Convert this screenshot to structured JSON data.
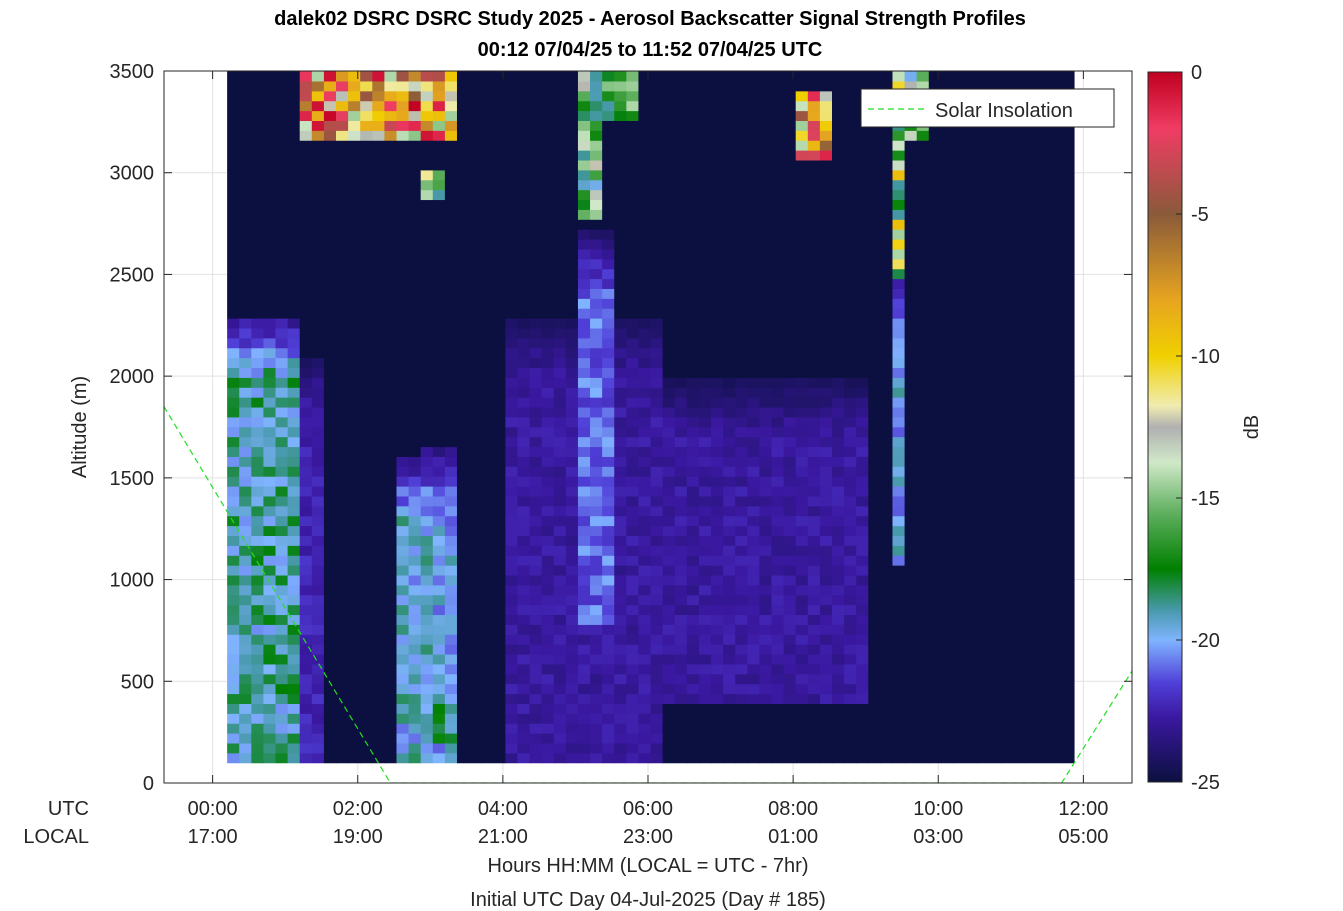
{
  "header": {
    "title_line1": "dalek02 DSRC DSRC Study 2025 - Aerosol Backscatter Signal Strength Profiles",
    "title_line2": "00:12 07/04/25 to 11:52 07/04/25  UTC"
  },
  "axes": {
    "ylabel": "Altitude (m)",
    "row_label_utc": "UTC",
    "row_label_local": "LOCAL",
    "xlabel_line1": "Hours HH:MM  (LOCAL = UTC - 7hr)",
    "xlabel_line2": "Initial UTC Day 04-Jul-2025 (Day # 185)"
  },
  "legend": {
    "label": "Solar Insolation",
    "placement": "top-right"
  },
  "colorbar": {
    "label": "dB",
    "ticks": [
      "0",
      "-5",
      "-10",
      "-15",
      "-20",
      "-25"
    ]
  },
  "colors": {
    "line": "#22dd22",
    "background": "#0c1040"
  },
  "chart_data": {
    "type": "heatmap",
    "title": "dalek02 DSRC DSRC Study 2025 - Aerosol Backscatter Signal Strength Profiles",
    "subtitle": "00:12 07/04/25 to 11:52 07/04/25  UTC",
    "xlim_hours_utc": [
      -0.67,
      12.67
    ],
    "ylim": [
      0,
      3500
    ],
    "clim": [
      -25,
      0
    ],
    "grid": true,
    "x_ticks_utc": [
      "00:00",
      "02:00",
      "04:00",
      "06:00",
      "08:00",
      "10:00",
      "12:00"
    ],
    "x_ticks_local": [
      "17:00",
      "19:00",
      "21:00",
      "23:00",
      "01:00",
      "03:00",
      "05:00"
    ],
    "y_ticks": [
      "0",
      "500",
      "1000",
      "1500",
      "2000",
      "2500",
      "3000",
      "3500"
    ],
    "profile_time_range_hours_utc": [
      0.2,
      11.87
    ],
    "altitude_range_m": [
      100,
      3500
    ],
    "features": [
      {
        "time_start": 0.2,
        "time_end": 1.2,
        "alt_start": 100,
        "alt_end": 2300,
        "db_peak": -19
      },
      {
        "time_start": 1.2,
        "time_end": 1.5,
        "alt_start": 100,
        "alt_end": 2100,
        "db_peak": -22.5
      },
      {
        "time_start": 2.6,
        "time_end": 3.0,
        "alt_start": 100,
        "alt_end": 1600,
        "db_peak": -19.5
      },
      {
        "time_start": 2.9,
        "time_end": 3.4,
        "alt_start": 100,
        "alt_end": 1650,
        "db_peak": -20
      },
      {
        "time_start": 4.0,
        "time_end": 6.2,
        "alt_start": 100,
        "alt_end": 2300,
        "db_peak": -23
      },
      {
        "time_start": 5.1,
        "time_end": 5.5,
        "alt_start": 800,
        "alt_end": 2700,
        "db_peak": -21
      },
      {
        "time_start": 6.2,
        "time_end": 9.0,
        "alt_start": 400,
        "alt_end": 2000,
        "db_peak": -23
      },
      {
        "time_start": 9.3,
        "time_end": 9.6,
        "alt_start": 1050,
        "alt_end": 2500,
        "db_peak": -20
      }
    ],
    "high_signal_cells": [
      {
        "time_start": 1.25,
        "time_end": 3.4,
        "alt_start": 3150,
        "alt_end": 3500,
        "db_range": [
          -15,
          0
        ]
      },
      {
        "time_start": 2.9,
        "time_end": 3.2,
        "alt_start": 2850,
        "alt_end": 3000,
        "db_range": [
          -20,
          -10
        ]
      },
      {
        "time_start": 5.1,
        "time_end": 5.4,
        "alt_start": 2750,
        "alt_end": 3500,
        "db_range": [
          -20,
          -12
        ]
      },
      {
        "time_start": 5.4,
        "time_end": 5.8,
        "alt_start": 3250,
        "alt_end": 3500,
        "db_range": [
          -19,
          -14
        ]
      },
      {
        "time_start": 8.0,
        "time_end": 8.6,
        "alt_start": 3050,
        "alt_end": 3400,
        "db_range": [
          -15,
          -1
        ]
      },
      {
        "time_start": 9.3,
        "time_end": 9.6,
        "alt_start": 2500,
        "alt_end": 3500,
        "db_range": [
          -19,
          -9
        ]
      },
      {
        "time_start": 9.6,
        "time_end": 9.9,
        "alt_start": 3150,
        "alt_end": 3500,
        "db_range": [
          -20,
          -12
        ]
      },
      {
        "time_start": 3.1,
        "time_end": 3.3,
        "alt_start": 200,
        "alt_end": 400,
        "db_range": [
          -20,
          -17
        ]
      }
    ],
    "series": [
      {
        "name": "Solar Insolation",
        "x": [
          -0.67,
          2.45,
          11.7,
          12.67
        ],
        "y": [
          1850,
          0,
          0,
          550
        ]
      }
    ]
  }
}
